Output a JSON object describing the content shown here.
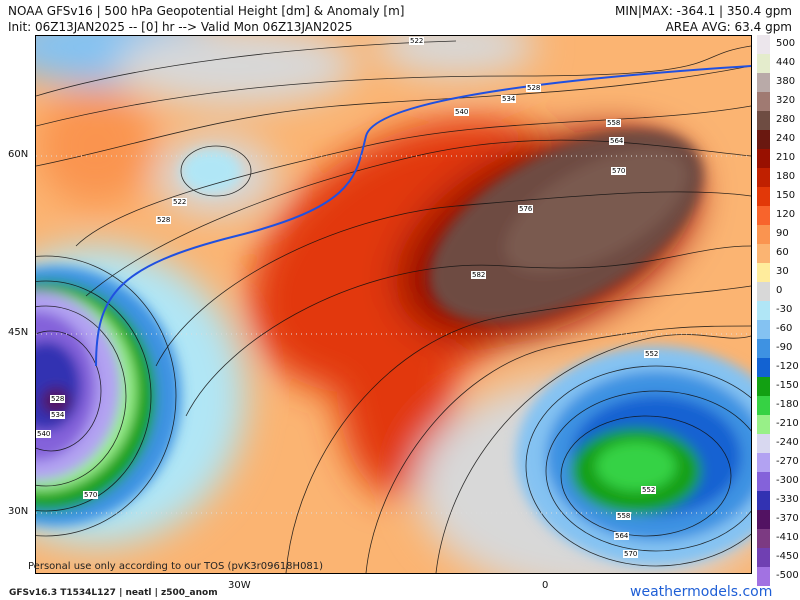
{
  "header": {
    "title": "NOAA GFSv16 | 500 hPa Geopotential Height [dm] & Anomaly [m]",
    "init": "Init: 06Z13JAN2025 -- [0] hr --> Valid Mon 06Z13JAN2025",
    "minmax": "MIN|MAX: -364.1 | 350.4 gpm",
    "area_avg": "AREA AVG: 63.4 gpm"
  },
  "axes": {
    "lat": [
      "60N",
      "45N",
      "30N"
    ],
    "lon": [
      "30W",
      "0"
    ]
  },
  "contour_labels": [
    "522",
    "528",
    "534",
    "540",
    "558",
    "564",
    "570",
    "576",
    "582",
    "522",
    "528",
    "528",
    "534",
    "540",
    "570",
    "552",
    "558",
    "564",
    "570",
    "552"
  ],
  "colorbar": {
    "labels": [
      "500",
      "440",
      "380",
      "320",
      "280",
      "240",
      "210",
      "180",
      "150",
      "120",
      "90",
      "60",
      "30",
      "0",
      "-30",
      "-60",
      "-90",
      "-120",
      "-150",
      "-180",
      "-210",
      "-240",
      "-270",
      "-300",
      "-330",
      "-370",
      "-410",
      "-450",
      "-500"
    ],
    "colors": [
      "#ece6ec",
      "#e4eccc",
      "#b9aaa8",
      "#a07a72",
      "#6e4c42",
      "#6a1810",
      "#981000",
      "#c02000",
      "#e23808",
      "#f8642c",
      "#fa9450",
      "#fbb472",
      "#ffec9c",
      "#d8d8d8",
      "#b0e6f6",
      "#84c2f2",
      "#3e92e2",
      "#1262d2",
      "#12a012",
      "#36d244",
      "#98f088",
      "#d8d8f0",
      "#b2a2f2",
      "#8462da",
      "#3232b2",
      "#521262",
      "#7c3a82",
      "#7040b2",
      "#a272e2"
    ]
  },
  "footer": {
    "tos": "Personal use only according to our TOS (pvK3r09618H081)",
    "model": "GFSv16.3 T1534L127 | neatl | z500_anom",
    "site": "weathermodels.com"
  }
}
